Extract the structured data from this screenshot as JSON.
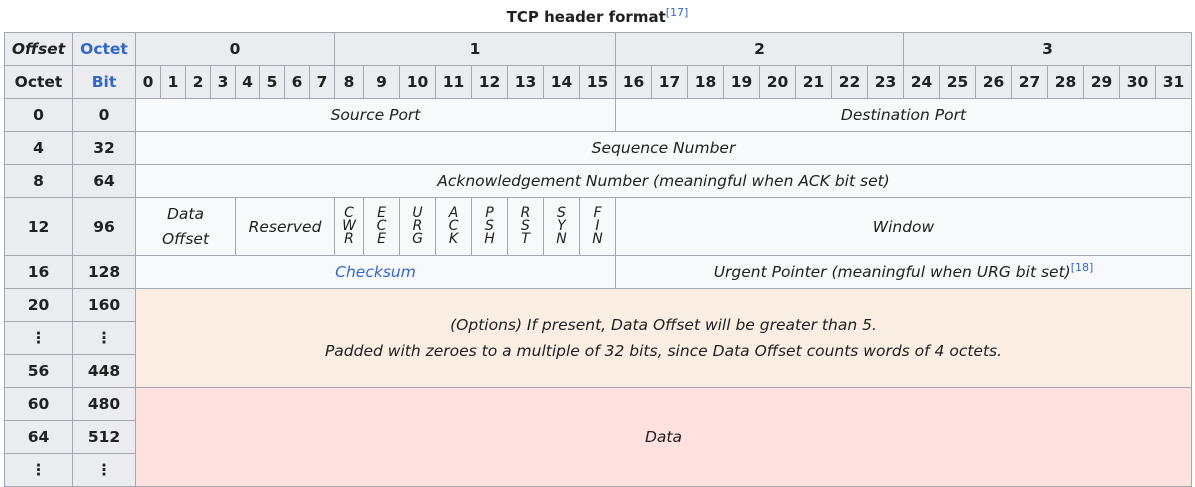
{
  "caption": {
    "title": "TCP header format",
    "ref": "[17]"
  },
  "header": {
    "offset_label": "Offset",
    "octet_label": "Octet",
    "octet_row_label": "Octet",
    "bit_label": "Bit",
    "octets": [
      "0",
      "1",
      "2",
      "3"
    ],
    "bits": [
      "0",
      "1",
      "2",
      "3",
      "4",
      "5",
      "6",
      "7",
      "8",
      "9",
      "10",
      "11",
      "12",
      "13",
      "14",
      "15",
      "16",
      "17",
      "18",
      "19",
      "20",
      "21",
      "22",
      "23",
      "24",
      "25",
      "26",
      "27",
      "28",
      "29",
      "30",
      "31"
    ]
  },
  "rows": [
    {
      "octet": "0",
      "bit": "0"
    },
    {
      "octet": "4",
      "bit": "32"
    },
    {
      "octet": "8",
      "bit": "64"
    },
    {
      "octet": "12",
      "bit": "96"
    },
    {
      "octet": "16",
      "bit": "128"
    },
    {
      "octet": "20",
      "bit": "160"
    },
    {
      "octet": "⋮",
      "bit": "⋮"
    },
    {
      "octet": "56",
      "bit": "448"
    },
    {
      "octet": "60",
      "bit": "480"
    },
    {
      "octet": "64",
      "bit": "512"
    },
    {
      "octet": "⋮",
      "bit": "⋮"
    }
  ],
  "fields": {
    "source_port": "Source Port",
    "destination_port": "Destination Port",
    "sequence_number": "Sequence Number",
    "ack_number": "Acknowledgement Number (meaningful when ACK bit set)",
    "data_offset_1": "Data",
    "data_offset_2": "Offset",
    "reserved": "Reserved",
    "window": "Window",
    "checksum": "Checksum",
    "urgent_pointer": "Urgent Pointer (meaningful when URG bit set)",
    "urgent_ref": "[18]",
    "options_line1": "(Options) If present, Data Offset will be greater than 5.",
    "options_line2": "Padded with zeroes to a multiple of 32 bits, since Data Offset counts words of 4 octets.",
    "data": "Data"
  },
  "flags": [
    [
      "C",
      "W",
      "R"
    ],
    [
      "E",
      "C",
      "E"
    ],
    [
      "U",
      "R",
      "G"
    ],
    [
      "A",
      "C",
      "K"
    ],
    [
      "P",
      "S",
      "H"
    ],
    [
      "R",
      "S",
      "T"
    ],
    [
      "S",
      "Y",
      "N"
    ],
    [
      "F",
      "I",
      "N"
    ]
  ],
  "colors": {
    "header_bg": "#eaecf0",
    "field_bg": "#f8f9fa",
    "options_bg": "#faeee3",
    "data_bg": "#ffe1e0",
    "link": "#3366cc",
    "border": "#a2a9b1"
  }
}
